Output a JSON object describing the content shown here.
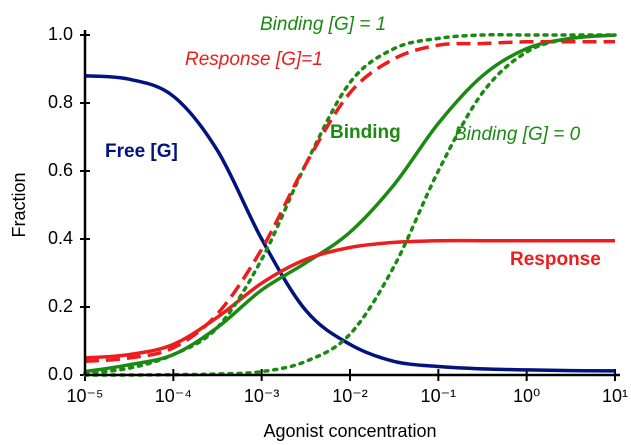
{
  "chart_data": {
    "type": "line",
    "xlabel": "Agonist concentration",
    "ylabel": "Fraction",
    "xscale": "log",
    "x": [
      1e-05,
      3.16e-05,
      0.0001,
      0.000316,
      0.001,
      0.00316,
      0.01,
      0.0316,
      0.1,
      0.316,
      1,
      3.16,
      10
    ],
    "series": [
      {
        "name": "Free [G]",
        "color": "#00137f",
        "style": "solid",
        "values": [
          0.88,
          0.87,
          0.82,
          0.66,
          0.4,
          0.19,
          0.09,
          0.04,
          0.025,
          0.018,
          0.015,
          0.013,
          0.012
        ]
      },
      {
        "name": "Binding",
        "color": "#1a8a12",
        "style": "solid",
        "values": [
          0.01,
          0.03,
          0.06,
          0.14,
          0.25,
          0.33,
          0.42,
          0.56,
          0.74,
          0.88,
          0.96,
          0.99,
          1.0
        ]
      },
      {
        "name": "Response",
        "color": "#ee1c1c",
        "style": "solid",
        "values": [
          0.05,
          0.06,
          0.09,
          0.17,
          0.27,
          0.34,
          0.375,
          0.39,
          0.395,
          0.395,
          0.395,
          0.395,
          0.395
        ]
      },
      {
        "name": "Binding [G] = 1",
        "color": "#1a8a12",
        "style": "dotted",
        "values": [
          0.005,
          0.02,
          0.06,
          0.14,
          0.34,
          0.62,
          0.86,
          0.96,
          0.99,
          1.0,
          1.0,
          1.0,
          1.0
        ]
      },
      {
        "name": "Response [G]=1",
        "color": "#ee1c1c",
        "style": "dashed",
        "values": [
          0.04,
          0.05,
          0.08,
          0.18,
          0.37,
          0.62,
          0.83,
          0.93,
          0.97,
          0.975,
          0.98,
          0.98,
          0.98
        ]
      },
      {
        "name": "Binding [G] = 0",
        "color": "#1a8a12",
        "style": "dotted",
        "values": [
          0,
          0,
          0.001,
          0.003,
          0.01,
          0.04,
          0.12,
          0.32,
          0.6,
          0.83,
          0.95,
          0.99,
          1.0
        ]
      }
    ],
    "annotations": [
      {
        "text": "Binding [G] = 1",
        "color": "#1a8a12"
      },
      {
        "text": "Response [G]=1",
        "color": "#ee1c1c"
      },
      {
        "text": "Free [G]",
        "color": "#00137f"
      },
      {
        "text": "Binding",
        "color": "#1a8a12"
      },
      {
        "text": "Binding [G] = 0",
        "color": "#1a8a12"
      },
      {
        "text": "Response",
        "color": "#ee1c1c"
      }
    ],
    "xlim": [
      1e-05,
      10
    ],
    "xticks": [
      {
        "value": 1e-05,
        "label": "10⁻⁵"
      },
      {
        "value": 0.0001,
        "label": "10⁻⁴"
      },
      {
        "value": 0.001,
        "label": "10⁻³"
      },
      {
        "value": 0.01,
        "label": "10⁻²"
      },
      {
        "value": 0.1,
        "label": "10⁻¹"
      },
      {
        "value": 1,
        "label": "10⁰"
      },
      {
        "value": 10,
        "label": "10¹"
      }
    ],
    "ylim": [
      0,
      1
    ],
    "yticks": [
      {
        "value": 0,
        "label": "0.0"
      },
      0.2,
      0.4,
      0.6,
      0.8,
      {
        "value": 1,
        "label": "1.0"
      }
    ]
  }
}
